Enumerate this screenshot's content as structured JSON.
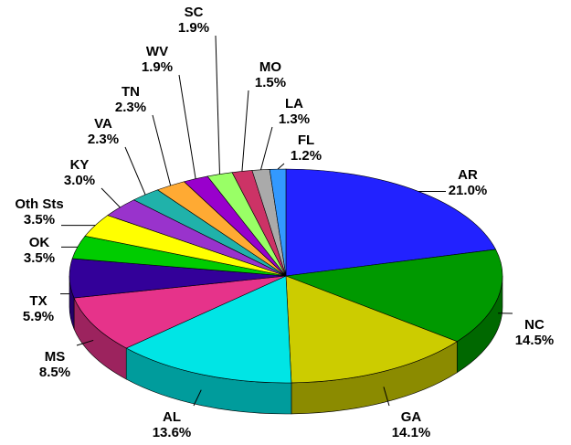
{
  "chart_data": {
    "type": "pie",
    "categories": [
      "AR",
      "NC",
      "GA",
      "AL",
      "MS",
      "TX",
      "OK",
      "Oth Sts",
      "KY",
      "VA",
      "TN",
      "WV",
      "SC",
      "MO",
      "LA",
      "FL"
    ],
    "values": [
      21.0,
      14.5,
      14.1,
      13.6,
      8.5,
      5.9,
      3.5,
      3.5,
      3.0,
      2.3,
      2.3,
      1.9,
      1.9,
      1.5,
      1.3,
      1.2
    ],
    "value_labels": [
      "21.0%",
      "14.5%",
      "14.1%",
      "13.6%",
      "8.5%",
      "5.9%",
      "3.5%",
      "3.5%",
      "3.0%",
      "2.3%",
      "2.3%",
      "1.9%",
      "1.9%",
      "1.5%",
      "1.3%",
      "1.2%"
    ],
    "colors": [
      "#2222ff",
      "#009900",
      "#cccc00",
      "#00e5e5",
      "#e6338a",
      "#330099",
      "#00cc00",
      "#ffff00",
      "#9933cc",
      "#20b2aa",
      "#ffaa33",
      "#9900cc",
      "#99ff66",
      "#cc3366",
      "#aaaaaa",
      "#3399ff"
    ]
  }
}
